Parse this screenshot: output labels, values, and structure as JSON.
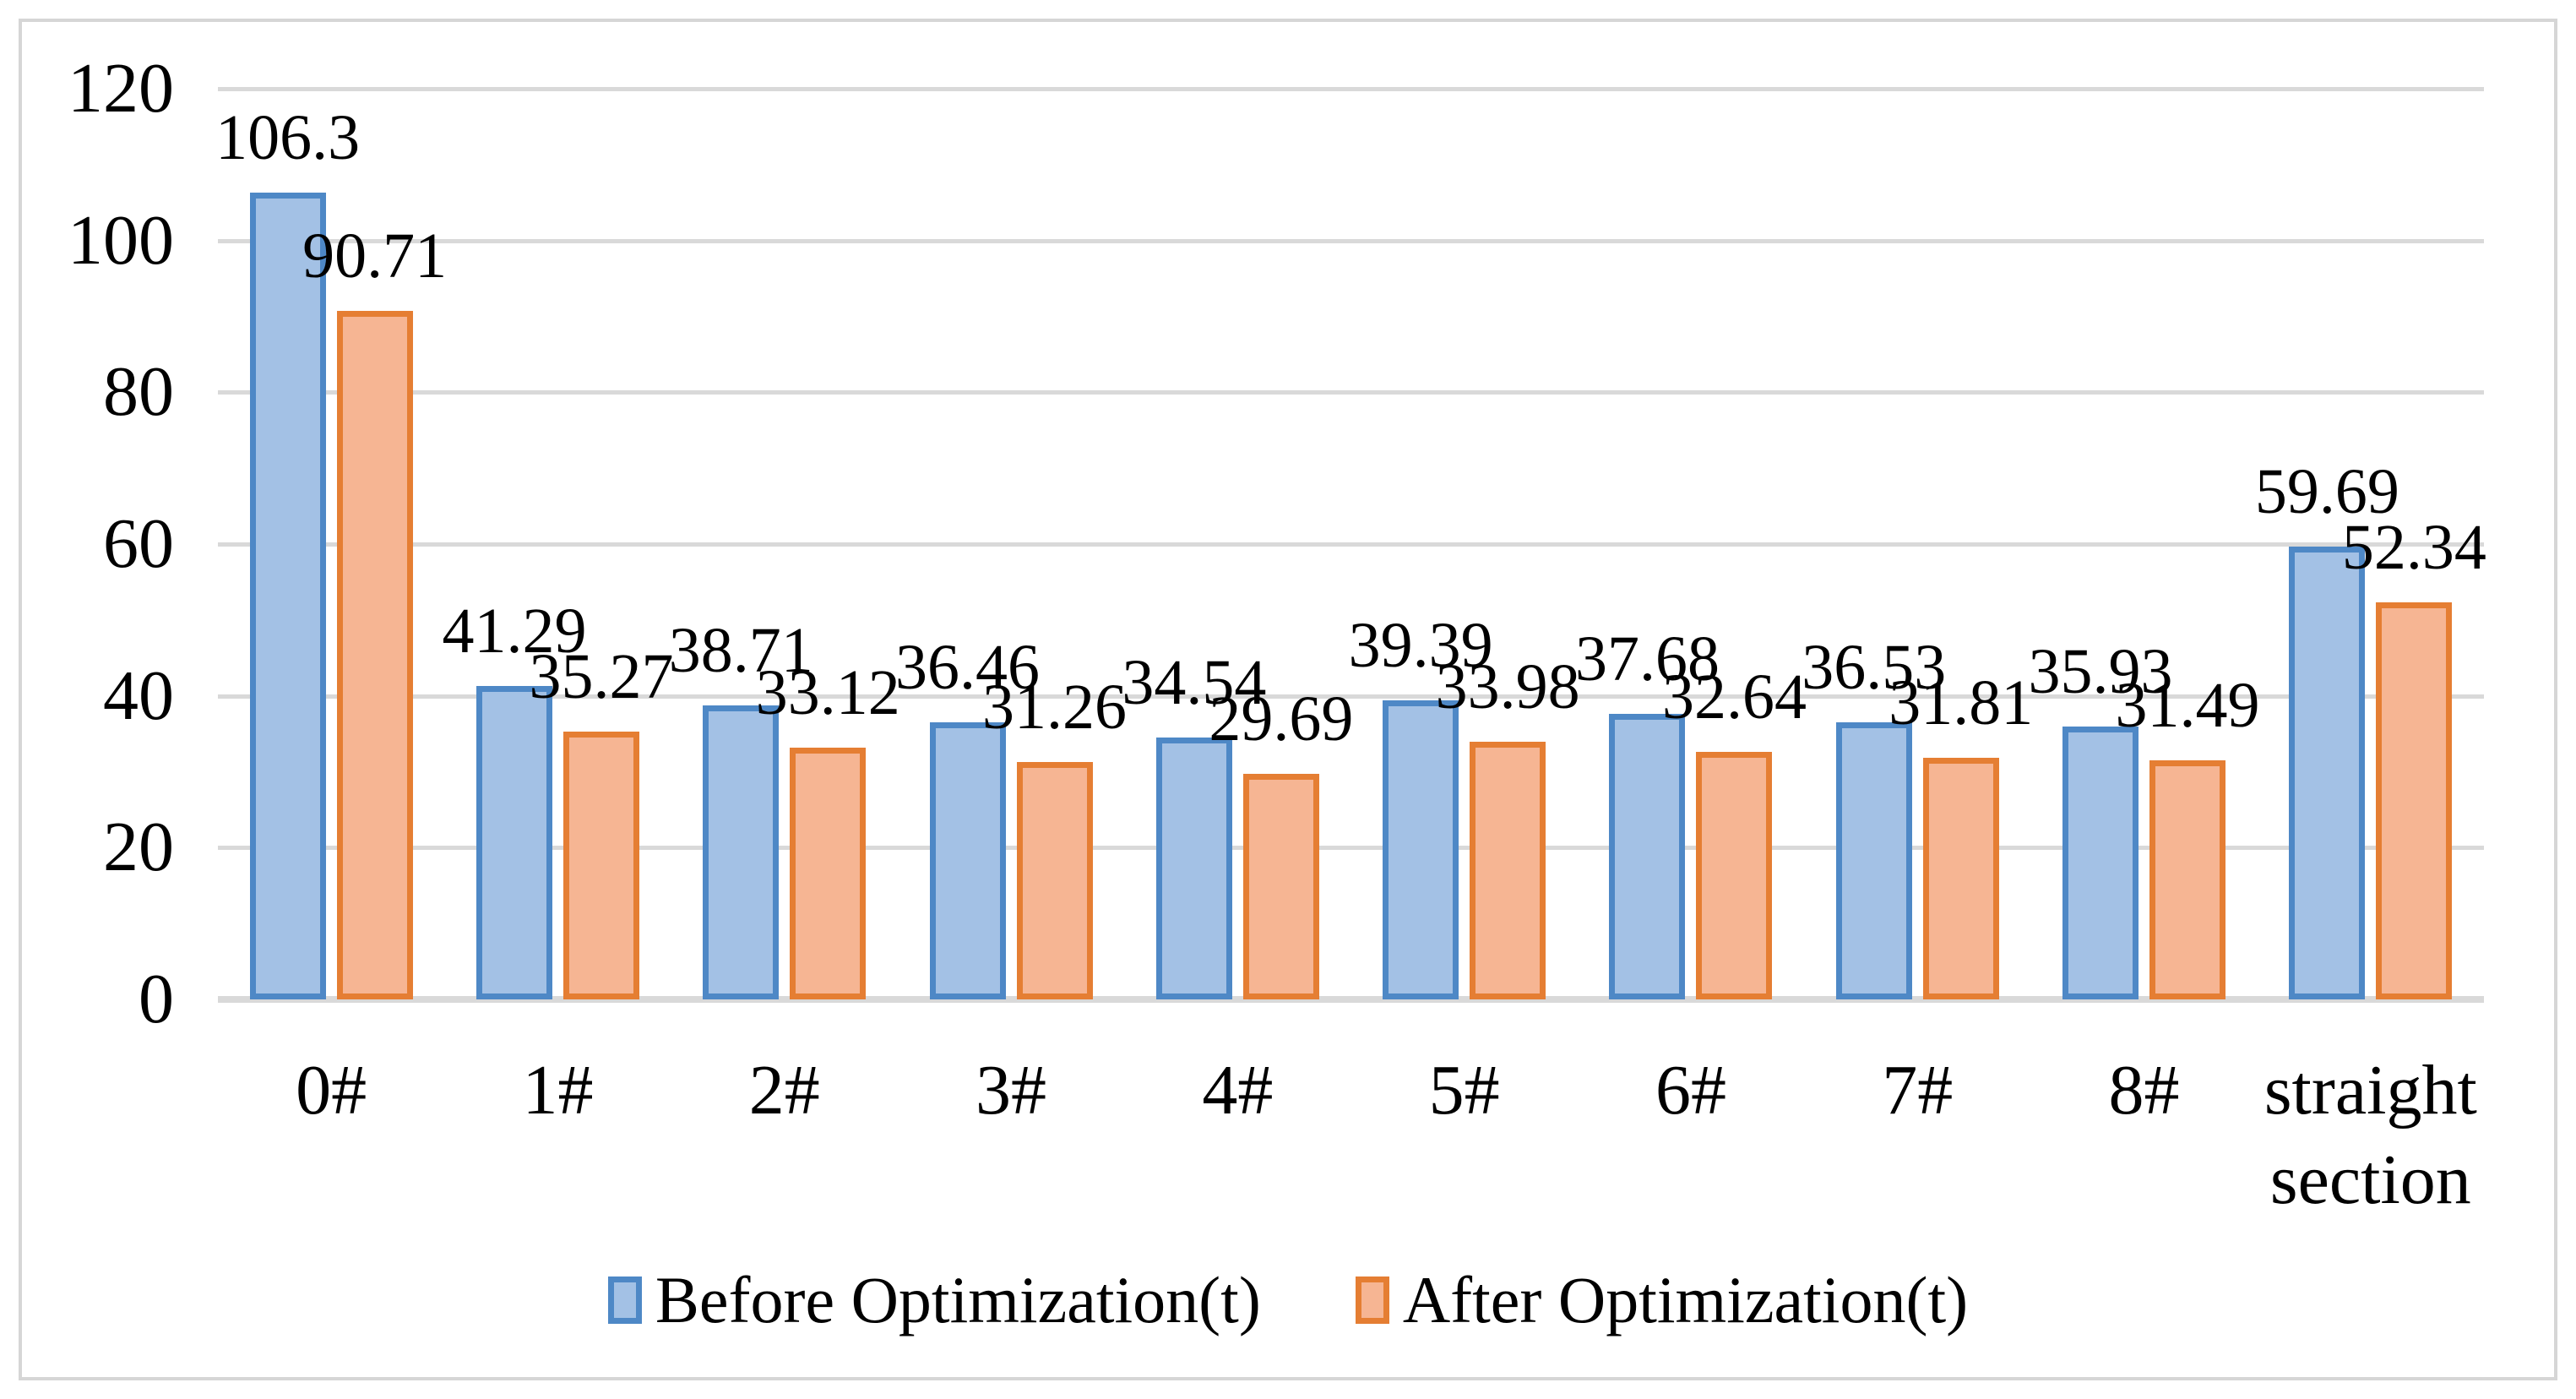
{
  "chart_data": {
    "type": "bar",
    "title": "",
    "xlabel": "",
    "ylabel": "",
    "categories": [
      "0#",
      "1#",
      "2#",
      "3#",
      "4#",
      "5#",
      "6#",
      "7#",
      "8#",
      "straight section"
    ],
    "series": [
      {
        "name": "Before Optimization(t)",
        "values": [
          106.3,
          41.29,
          38.71,
          36.46,
          34.54,
          39.39,
          37.68,
          36.53,
          35.93,
          59.69
        ],
        "value_labels": [
          "106.3",
          "41.29",
          "38.71",
          "36.46",
          "34.54",
          "39.39",
          "37.68",
          "36.53",
          "35.93",
          "59.69"
        ],
        "fill_color": "#A3C1E5",
        "border_color": "#4E88C6"
      },
      {
        "name": "After Optimization(t)",
        "values": [
          90.71,
          35.27,
          33.12,
          31.26,
          29.69,
          33.98,
          32.64,
          31.81,
          31.49,
          52.34
        ],
        "value_labels": [
          "90.71",
          "35.27",
          "33.12",
          "31.26",
          "29.69",
          "33.98",
          "32.64",
          "31.81",
          "31.49",
          "52.34"
        ],
        "fill_color": "#F6B593",
        "border_color": "#E57E33"
      }
    ],
    "y_axis": {
      "min": 0,
      "max": 120,
      "ticks": [
        0,
        20,
        40,
        60,
        80,
        100,
        120
      ],
      "tick_labels": [
        "0",
        "20",
        "40",
        "60",
        "80",
        "100",
        "120"
      ]
    },
    "grid": true,
    "gridline_color": "#D9D9D9",
    "frame_color": "#D6D6D6",
    "text_color": "#000000",
    "legend_position": "bottom"
  }
}
